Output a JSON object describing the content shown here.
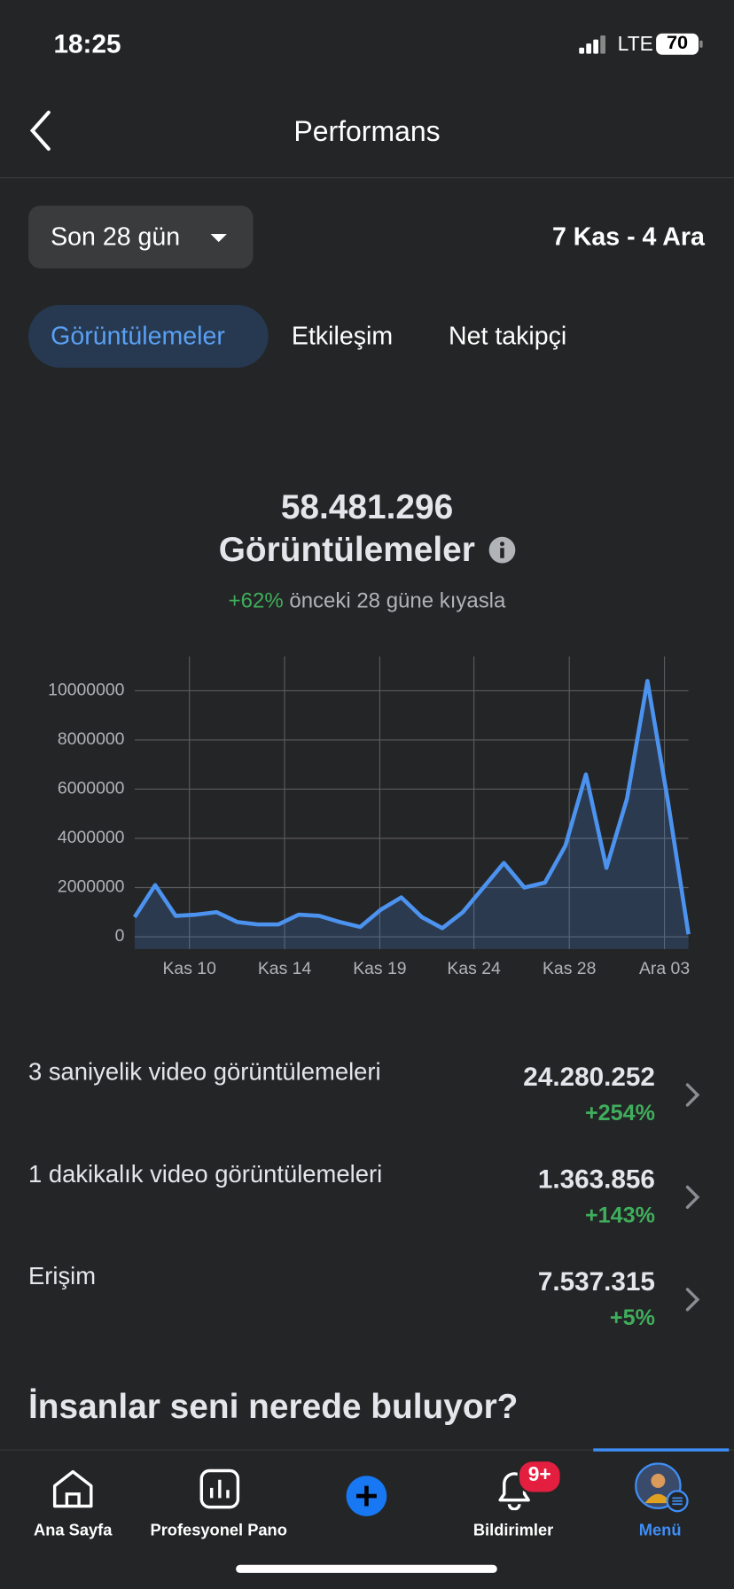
{
  "status": {
    "time": "18:25",
    "network": "LTE",
    "battery": "70"
  },
  "header": {
    "title": "Performans"
  },
  "filter": {
    "period": "Son 28 gün",
    "range": "7 Kas - 4 Ara"
  },
  "tabs": [
    "Görüntülemeler",
    "Etkileşim",
    "Net takipçi"
  ],
  "summary": {
    "total": "58.481.296",
    "label": "Görüntülemeler",
    "change": "+62%",
    "comparison": "önceki 28 güne kıyasla"
  },
  "chart_data": {
    "type": "area",
    "color": "#4c93f0",
    "x": [
      0,
      1,
      2,
      3,
      4,
      5,
      6,
      7,
      8,
      9,
      10,
      11,
      12,
      13,
      14,
      15,
      16,
      17,
      18,
      19,
      20,
      21,
      22,
      23,
      24,
      25,
      26,
      27
    ],
    "values": [
      800000,
      2100000,
      850000,
      900000,
      1000000,
      600000,
      500000,
      500000,
      900000,
      850000,
      600000,
      400000,
      1100000,
      1600000,
      800000,
      350000,
      1000000,
      2000000,
      3000000,
      2000000,
      2200000,
      3700000,
      6600000,
      2800000,
      5600000,
      10400000,
      5500000,
      100000
    ],
    "xlim": [
      0,
      27
    ],
    "xticks": [
      {
        "value": 2.67,
        "label": "Kas 10"
      },
      {
        "value": 7.31,
        "label": "Kas 14"
      },
      {
        "value": 11.95,
        "label": "Kas 19"
      },
      {
        "value": 16.54,
        "label": "Kas 24"
      },
      {
        "value": 21.19,
        "label": "Kas 28"
      },
      {
        "value": 25.83,
        "label": "Ara 03"
      }
    ],
    "ylim": [
      -500000,
      11400000
    ],
    "yticks": [
      0,
      2000000,
      4000000,
      6000000,
      8000000,
      10000000
    ],
    "grid": true
  },
  "metrics": [
    {
      "label": "3 saniyelik video görüntülemeleri",
      "value": "24.280.252",
      "change": "+254%"
    },
    {
      "label": "1 dakikalık video görüntülemeleri",
      "value": "1.363.856",
      "change": "+143%"
    },
    {
      "label": "Erişim",
      "value": "7.537.315",
      "change": "+5%"
    }
  ],
  "section_title": "İnsanlar seni nerede buluyor?",
  "nav": {
    "items": [
      "Ana Sayfa",
      "Profesyonel Pano",
      "Bildirimler",
      "Menü"
    ],
    "badge": "9+"
  }
}
